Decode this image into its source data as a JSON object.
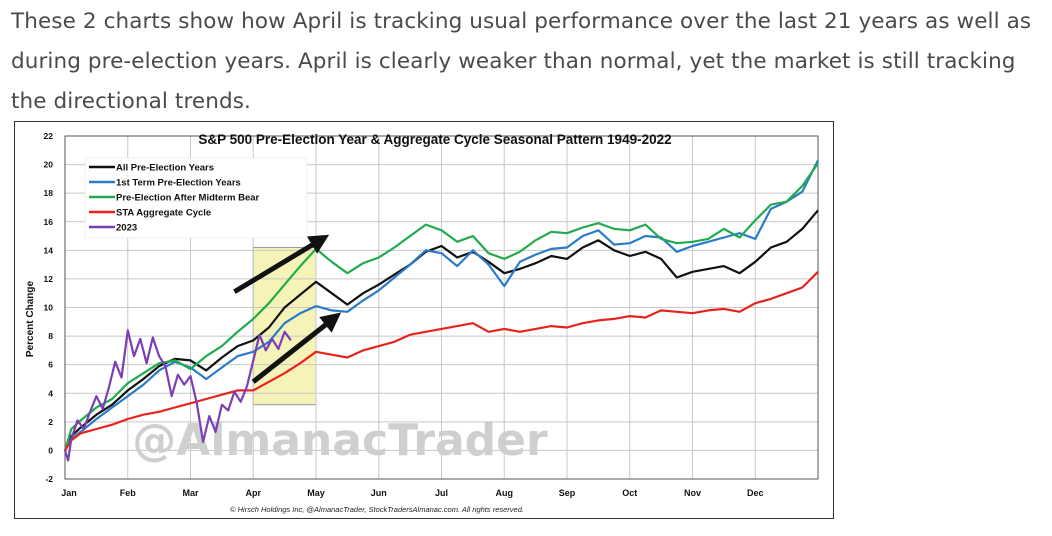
{
  "intro_text": "These 2 charts show how April is tracking usual performance over the last 21 years as well as during pre-election years. April is clearly weaker than normal, yet the market is still tracking the directional trends.",
  "chart_data": {
    "type": "line",
    "title": "S&P 500 Pre-Election Year & Aggregate Cycle Seasonal Pattern 1949-2022",
    "ylabel": "Percent Change",
    "xlabel": "",
    "ylim": [
      -2,
      22
    ],
    "yticks": [
      -2,
      0,
      2,
      4,
      6,
      8,
      10,
      12,
      14,
      16,
      18,
      20,
      22
    ],
    "xlim": [
      0,
      12
    ],
    "months": [
      "Jan",
      "Feb",
      "Mar",
      "Apr",
      "May",
      "Jun",
      "Jul",
      "Aug",
      "Sep",
      "Oct",
      "Nov",
      "Dec"
    ],
    "grid": true,
    "legend_position": "top-left",
    "watermark": "@AlmanacTrader",
    "footer": "© Hirsch Holdings Inc, @AlmanacTrader, StockTradersAlmanac.com. All rights reserved.",
    "highlight_region": {
      "x_start": 3.0,
      "x_end": 4.0,
      "y_start": 3.2,
      "y_end": 14.2,
      "color": "#f5f3b8"
    },
    "annotations": [
      {
        "type": "arrow",
        "from": [
          2.7,
          11.1
        ],
        "to": [
          4.1,
          14.8
        ],
        "color": "#111111"
      },
      {
        "type": "arrow",
        "from": [
          3.0,
          4.8
        ],
        "to": [
          4.3,
          9.3
        ],
        "color": "#111111"
      }
    ],
    "series": [
      {
        "name": "All Pre-Election Years",
        "color": "#111111",
        "x": [
          0,
          0.1,
          0.25,
          0.5,
          0.75,
          1.0,
          1.25,
          1.5,
          1.75,
          2.0,
          2.25,
          2.5,
          2.75,
          3.0,
          3.25,
          3.5,
          3.75,
          4.0,
          4.25,
          4.5,
          4.75,
          5.0,
          5.25,
          5.5,
          5.75,
          6.0,
          6.25,
          6.5,
          6.75,
          7.0,
          7.25,
          7.5,
          7.75,
          8.0,
          8.25,
          8.5,
          8.75,
          9.0,
          9.25,
          9.5,
          9.75,
          10.0,
          10.25,
          10.5,
          10.75,
          11.0,
          11.25,
          11.5,
          11.75,
          12.0
        ],
        "values": [
          0,
          1.0,
          1.6,
          2.5,
          3.2,
          4.2,
          5.0,
          5.9,
          6.4,
          6.3,
          5.6,
          6.5,
          7.3,
          7.7,
          8.6,
          10.0,
          10.9,
          11.8,
          11.0,
          10.2,
          11.0,
          11.6,
          12.3,
          13.0,
          13.9,
          14.3,
          13.5,
          13.9,
          13.2,
          12.4,
          12.7,
          13.1,
          13.6,
          13.4,
          14.2,
          14.7,
          14.0,
          13.6,
          13.9,
          13.4,
          12.1,
          12.5,
          12.7,
          12.9,
          12.4,
          13.2,
          14.2,
          14.6,
          15.5,
          16.8
        ]
      },
      {
        "name": "1st Term Pre-Election Years",
        "color": "#2a7bc8",
        "x": [
          0,
          0.1,
          0.25,
          0.5,
          0.75,
          1.0,
          1.25,
          1.5,
          1.75,
          2.0,
          2.25,
          2.5,
          2.75,
          3.0,
          3.25,
          3.5,
          3.75,
          4.0,
          4.25,
          4.5,
          4.75,
          5.0,
          5.25,
          5.5,
          5.75,
          6.0,
          6.25,
          6.5,
          6.75,
          7.0,
          7.25,
          7.5,
          7.75,
          8.0,
          8.25,
          8.5,
          8.75,
          9.0,
          9.25,
          9.5,
          9.75,
          10.0,
          10.25,
          10.5,
          10.75,
          11.0,
          11.25,
          11.5,
          11.75,
          12.0
        ],
        "values": [
          0,
          0.8,
          1.3,
          2.2,
          3.0,
          3.8,
          4.6,
          5.6,
          6.2,
          5.8,
          5.0,
          5.8,
          6.6,
          6.9,
          7.6,
          8.9,
          9.6,
          10.1,
          9.8,
          9.7,
          10.5,
          11.2,
          12.1,
          13.0,
          14.0,
          13.8,
          12.9,
          14.0,
          13.0,
          11.5,
          13.2,
          13.7,
          14.1,
          14.2,
          15.0,
          15.4,
          14.4,
          14.5,
          15.0,
          14.9,
          13.9,
          14.3,
          14.6,
          14.9,
          15.2,
          14.8,
          16.9,
          17.4,
          18.1,
          20.3
        ]
      },
      {
        "name": "Pre-Election After Midterm Bear",
        "color": "#1fab4e",
        "x": [
          0,
          0.1,
          0.25,
          0.5,
          0.75,
          1.0,
          1.25,
          1.5,
          1.75,
          2.0,
          2.25,
          2.5,
          2.75,
          3.0,
          3.25,
          3.5,
          3.75,
          4.0,
          4.25,
          4.5,
          4.75,
          5.0,
          5.25,
          5.5,
          5.75,
          6.0,
          6.25,
          6.5,
          6.75,
          7.0,
          7.25,
          7.5,
          7.75,
          8.0,
          8.25,
          8.5,
          8.75,
          9.0,
          9.25,
          9.5,
          9.75,
          10.0,
          10.25,
          10.5,
          10.75,
          11.0,
          11.25,
          11.5,
          11.75,
          12.0
        ],
        "values": [
          0,
          1.5,
          2.1,
          3.0,
          3.6,
          4.7,
          5.4,
          6.1,
          6.3,
          5.7,
          6.6,
          7.3,
          8.3,
          9.2,
          10.3,
          11.6,
          12.9,
          14.1,
          13.2,
          12.4,
          13.1,
          13.5,
          14.2,
          15.0,
          15.8,
          15.4,
          14.6,
          15.0,
          13.8,
          13.4,
          13.9,
          14.7,
          15.3,
          15.2,
          15.6,
          15.9,
          15.5,
          15.4,
          15.8,
          14.8,
          14.5,
          14.6,
          14.8,
          15.5,
          14.9,
          16.1,
          17.2,
          17.4,
          18.5,
          20.1
        ]
      },
      {
        "name": "STA Aggregate Cycle",
        "color": "#e8231d",
        "x": [
          0,
          0.1,
          0.25,
          0.5,
          0.75,
          1.0,
          1.25,
          1.5,
          1.75,
          2.0,
          2.25,
          2.5,
          2.75,
          3.0,
          3.25,
          3.5,
          3.75,
          4.0,
          4.25,
          4.5,
          4.75,
          5.0,
          5.25,
          5.5,
          5.75,
          6.0,
          6.25,
          6.5,
          6.75,
          7.0,
          7.25,
          7.5,
          7.75,
          8.0,
          8.25,
          8.5,
          8.75,
          9.0,
          9.25,
          9.5,
          9.75,
          10.0,
          10.25,
          10.5,
          10.75,
          11.0,
          11.25,
          11.5,
          11.75,
          12.0
        ],
        "values": [
          0,
          0.7,
          1.2,
          1.5,
          1.8,
          2.2,
          2.5,
          2.7,
          3.0,
          3.3,
          3.6,
          3.9,
          4.2,
          4.2,
          4.8,
          5.4,
          6.1,
          6.9,
          6.7,
          6.5,
          7.0,
          7.3,
          7.6,
          8.1,
          8.3,
          8.5,
          8.7,
          8.9,
          8.3,
          8.5,
          8.3,
          8.5,
          8.7,
          8.6,
          8.9,
          9.1,
          9.2,
          9.4,
          9.3,
          9.8,
          9.7,
          9.6,
          9.8,
          9.9,
          9.7,
          10.3,
          10.6,
          11.0,
          11.4,
          12.5
        ]
      },
      {
        "name": "2023",
        "color": "#7a3fb3",
        "x": [
          0,
          0.05,
          0.1,
          0.2,
          0.3,
          0.4,
          0.5,
          0.6,
          0.7,
          0.8,
          0.9,
          1.0,
          1.1,
          1.2,
          1.3,
          1.4,
          1.5,
          1.6,
          1.7,
          1.8,
          1.9,
          2.0,
          2.1,
          2.2,
          2.3,
          2.4,
          2.5,
          2.6,
          2.7,
          2.8,
          2.9,
          3.0,
          3.1,
          3.2,
          3.3,
          3.4,
          3.5,
          3.6
        ],
        "values": [
          0,
          -0.7,
          0.8,
          2.1,
          1.5,
          2.7,
          3.8,
          2.9,
          4.4,
          6.2,
          5.1,
          8.4,
          6.6,
          7.8,
          6.1,
          7.9,
          6.6,
          5.9,
          3.8,
          5.3,
          4.6,
          5.2,
          3.3,
          0.6,
          2.4,
          1.3,
          3.2,
          2.8,
          4.1,
          3.4,
          4.5,
          6.3,
          8.1,
          7.0,
          7.8,
          7.1,
          8.3,
          7.7
        ]
      }
    ]
  }
}
